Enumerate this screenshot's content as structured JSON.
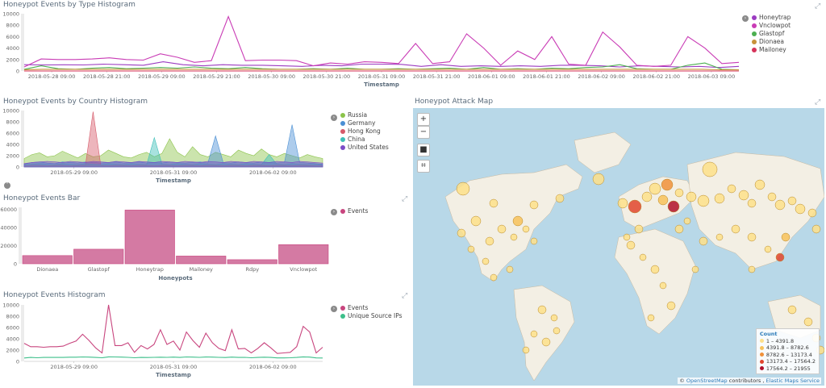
{
  "panels": {
    "type_histogram": {
      "title": "Honeypot Events by Type Histogram",
      "x_label": "Timestamp",
      "y_ticks": [
        "10000",
        "8000",
        "6000",
        "4000",
        "2000",
        "0"
      ],
      "x_ticks": [
        "2018-05-28 09:00",
        "2018-05-28 21:00",
        "2018-05-29 09:00",
        "2018-05-29 21:00",
        "2018-05-30 09:00",
        "2018-05-30 21:00",
        "2018-05-31 09:00",
        "2018-05-31 21:00",
        "2018-06-01 09:00",
        "2018-06-01 21:00",
        "2018-06-02 09:00",
        "2018-06-02 21:00",
        "2018-06-03 09:00"
      ],
      "legend": [
        {
          "name": "Honeytrap",
          "color": "#9b3bc1"
        },
        {
          "name": "Vnclowpot",
          "color": "#c93bb5"
        },
        {
          "name": "Glastopf",
          "color": "#4caf50"
        },
        {
          "name": "Dionaea",
          "color": "#c8923a"
        },
        {
          "name": "Mailoney",
          "color": "#d6335a"
        }
      ]
    },
    "country_histogram": {
      "title": "Honeypot Events by Country Histogram",
      "x_label": "Timestamp",
      "y_ticks": [
        "10000",
        "8000",
        "6000",
        "4000",
        "2000",
        "0"
      ],
      "x_ticks": [
        "2018-05-29 09:00",
        "2018-05-31 09:00",
        "2018-06-02 09:00"
      ],
      "legend": [
        {
          "name": "Russia",
          "color": "#8bc34a"
        },
        {
          "name": "Germany",
          "color": "#4a8fd4"
        },
        {
          "name": "Hong Kong",
          "color": "#d65a6a"
        },
        {
          "name": "China",
          "color": "#3dbfb8"
        },
        {
          "name": "United States",
          "color": "#7b4cc7"
        }
      ]
    },
    "events_bar": {
      "title": "Honeypot Events Bar",
      "x_label": "Honeypots",
      "legend": [
        {
          "name": "Events",
          "color": "#c8457e"
        }
      ]
    },
    "events_histogram": {
      "title": "Honeypot Events Histogram",
      "x_label": "Timestamp",
      "y_ticks": [
        "10000",
        "8000",
        "6000",
        "4000",
        "2000",
        "0"
      ],
      "x_ticks": [
        "2018-05-29 09:00",
        "2018-05-31 09:00",
        "2018-06-02 09:00"
      ],
      "legend": [
        {
          "name": "Events",
          "color": "#c8457e"
        },
        {
          "name": "Unique Source IPs",
          "color": "#3dbf8a"
        }
      ]
    },
    "attack_map": {
      "title": "Honeypot Attack Map",
      "zoom_in": "+",
      "zoom_out": "−",
      "legend_title": "Count",
      "legend": [
        {
          "range": "1 – 4391.8",
          "color": "#fde08a"
        },
        {
          "range": "4391.8 – 8782.6",
          "color": "#f7c25a"
        },
        {
          "range": "8782.6 – 13173.4",
          "color": "#f0913a"
        },
        {
          "range": "13173.4 – 17564.2",
          "color": "#e0452d"
        },
        {
          "range": "17564.2 – 21955",
          "color": "#b0102a"
        }
      ],
      "attribution_prefix": "©",
      "attribution_osm": "OpenStreetMap",
      "attribution_mid": "contributors ,",
      "attribution_ems": "Elastic Maps Service"
    }
  },
  "chart_data": [
    {
      "type": "line",
      "title": "Honeypot Events by Type Histogram",
      "xlabel": "Timestamp",
      "ylabel": "",
      "ylim": [
        0,
        10000
      ],
      "series": [
        {
          "name": "Honeytrap",
          "values": [
            1100,
            1050,
            1080,
            1050,
            1200,
            1100,
            1000,
            1600,
            1100,
            900,
            1100,
            1000,
            1000,
            900,
            800,
            1000,
            900,
            1200,
            1200,
            1150,
            800,
            1100,
            800,
            900,
            800,
            900,
            800,
            1000,
            1000,
            900,
            700,
            900,
            800,
            700,
            800,
            600,
            800
          ]
        },
        {
          "name": "Vnclowpot",
          "values": [
            700,
            2100,
            2000,
            2000,
            2100,
            2300,
            2000,
            1900,
            3000,
            2400,
            1500,
            1800,
            9500,
            1800,
            1900,
            1900,
            1800,
            900,
            1400,
            1200,
            1600,
            1500,
            1300,
            4800,
            1300,
            1600,
            6500,
            4000,
            1000,
            3500,
            2000,
            6000,
            1200,
            1000,
            6800,
            4200,
            1000,
            800,
            1000,
            6000,
            4000,
            1300,
            1500
          ]
        },
        {
          "name": "Glastopf",
          "values": [
            300,
            900,
            400,
            300,
            500,
            600,
            400,
            500,
            600,
            500,
            700,
            500,
            400,
            600,
            400,
            300,
            300,
            400,
            300,
            500,
            300,
            300,
            400,
            300,
            400,
            500,
            300,
            600,
            300,
            400,
            300,
            500,
            400,
            600,
            700,
            1100,
            400,
            300,
            300,
            1000,
            1400,
            300,
            200
          ]
        },
        {
          "name": "Dionaea",
          "values": [
            200,
            300,
            300,
            300,
            300,
            300,
            300,
            300,
            300,
            300,
            300,
            300,
            300,
            300,
            300,
            300,
            300,
            300,
            300,
            300,
            300,
            300,
            300,
            300,
            300,
            300,
            300,
            300,
            300,
            300,
            300,
            300,
            300,
            300,
            300,
            300,
            300,
            300,
            200,
            200
          ]
        },
        {
          "name": "Mailoney",
          "values": [
            0,
            0,
            0,
            0,
            0,
            0,
            0,
            0,
            0,
            0,
            0,
            0,
            0,
            0,
            0,
            0,
            0,
            0,
            0,
            0,
            0,
            0,
            0,
            0,
            0,
            0,
            0,
            0,
            0,
            0,
            0,
            0,
            0,
            0,
            0,
            0
          ]
        }
      ]
    },
    {
      "type": "area",
      "title": "Honeypot Events by Country Histogram",
      "xlabel": "Timestamp",
      "ylabel": "",
      "ylim": [
        0,
        10000
      ],
      "series": [
        {
          "name": "Russia",
          "values": [
            1500,
            2200,
            2500,
            1800,
            2000,
            2800,
            2200,
            1600,
            2400,
            1800,
            2000,
            3000,
            2400,
            1800,
            1600,
            2200,
            2600,
            1800,
            2400,
            5000,
            2600,
            1800,
            3600,
            2200,
            1800,
            2600,
            2200,
            1800,
            3000,
            2400,
            2000,
            3200,
            2200,
            1800,
            2400,
            2000,
            1600,
            2200,
            1800,
            1500
          ]
        },
        {
          "name": "Germany",
          "values": [
            500,
            800,
            900,
            700,
            600,
            900,
            800,
            700,
            900,
            800,
            700,
            800,
            900,
            700,
            800,
            900,
            700,
            800,
            700,
            900,
            800,
            700,
            800,
            900,
            700,
            5500,
            800,
            700,
            900,
            800,
            700,
            900,
            800,
            700,
            800,
            7500,
            800,
            700,
            600,
            500
          ]
        },
        {
          "name": "Hong Kong",
          "values": [
            200,
            300,
            300,
            200,
            300,
            300,
            200,
            300,
            300,
            9800,
            300,
            200,
            300,
            300,
            200,
            300,
            300,
            200,
            300,
            300,
            200,
            300,
            300,
            200,
            300,
            300,
            200,
            300,
            300,
            200,
            300,
            300,
            200,
            300,
            300,
            200,
            300,
            300,
            200,
            200
          ]
        },
        {
          "name": "China",
          "values": [
            400,
            500,
            600,
            500,
            400,
            600,
            500,
            400,
            600,
            500,
            400,
            600,
            500,
            400,
            600,
            500,
            400,
            5200,
            500,
            400,
            600,
            500,
            400,
            600,
            500,
            400,
            600,
            500,
            400,
            600,
            500,
            400,
            2200,
            500,
            400,
            600,
            500,
            400,
            500,
            400
          ]
        },
        {
          "name": "United States",
          "values": [
            600,
            800,
            900,
            1000,
            900,
            800,
            1000,
            900,
            800,
            1000,
            900,
            800,
            1000,
            900,
            800,
            1000,
            900,
            800,
            1000,
            900,
            800,
            1000,
            900,
            800,
            1000,
            900,
            800,
            1000,
            900,
            800,
            1000,
            900,
            800,
            1000,
            900,
            800,
            1000,
            900,
            800,
            700
          ]
        }
      ]
    },
    {
      "type": "bar",
      "title": "Honeypot Events Bar",
      "xlabel": "Honeypots",
      "ylabel": "",
      "ylim": [
        0,
        62000
      ],
      "y_ticks": [
        "60000",
        "40000",
        "20000",
        "0"
      ],
      "categories": [
        "Dionaea",
        "Glastopf",
        "Honeytrap",
        "Mailoney",
        "Rdpy",
        "Vnclowpot"
      ],
      "series": [
        {
          "name": "Events",
          "values": [
            9000,
            16000,
            59000,
            8500,
            4500,
            21000
          ]
        }
      ]
    },
    {
      "type": "line",
      "title": "Honeypot Events Histogram",
      "xlabel": "Timestamp",
      "ylabel": "",
      "ylim": [
        0,
        10000
      ],
      "series": [
        {
          "name": "Events",
          "values": [
            3200,
            2600,
            2600,
            2500,
            2600,
            2600,
            2700,
            3200,
            3600,
            4800,
            3700,
            2400,
            1500,
            10000,
            2800,
            2800,
            3300,
            1600,
            2800,
            2200,
            3000,
            5600,
            3000,
            3600,
            2000,
            5200,
            3700,
            2500,
            5000,
            3300,
            2300,
            1900,
            5600,
            2200,
            2300,
            1500,
            2300,
            3300,
            2400,
            1400,
            1500,
            1600,
            2600,
            6200,
            5200,
            1500,
            2500
          ]
        },
        {
          "name": "Unique Source IPs",
          "values": [
            600,
            700,
            650,
            700,
            700,
            720,
            700,
            750,
            750,
            780,
            760,
            700,
            650,
            800,
            780,
            760,
            720,
            650,
            700,
            680,
            720,
            750,
            720,
            760,
            700,
            780,
            760,
            720,
            780,
            760,
            720,
            680,
            760,
            700,
            720,
            650,
            700,
            740,
            700,
            620,
            620,
            650,
            700,
            800,
            760,
            620,
            600
          ]
        }
      ]
    }
  ]
}
